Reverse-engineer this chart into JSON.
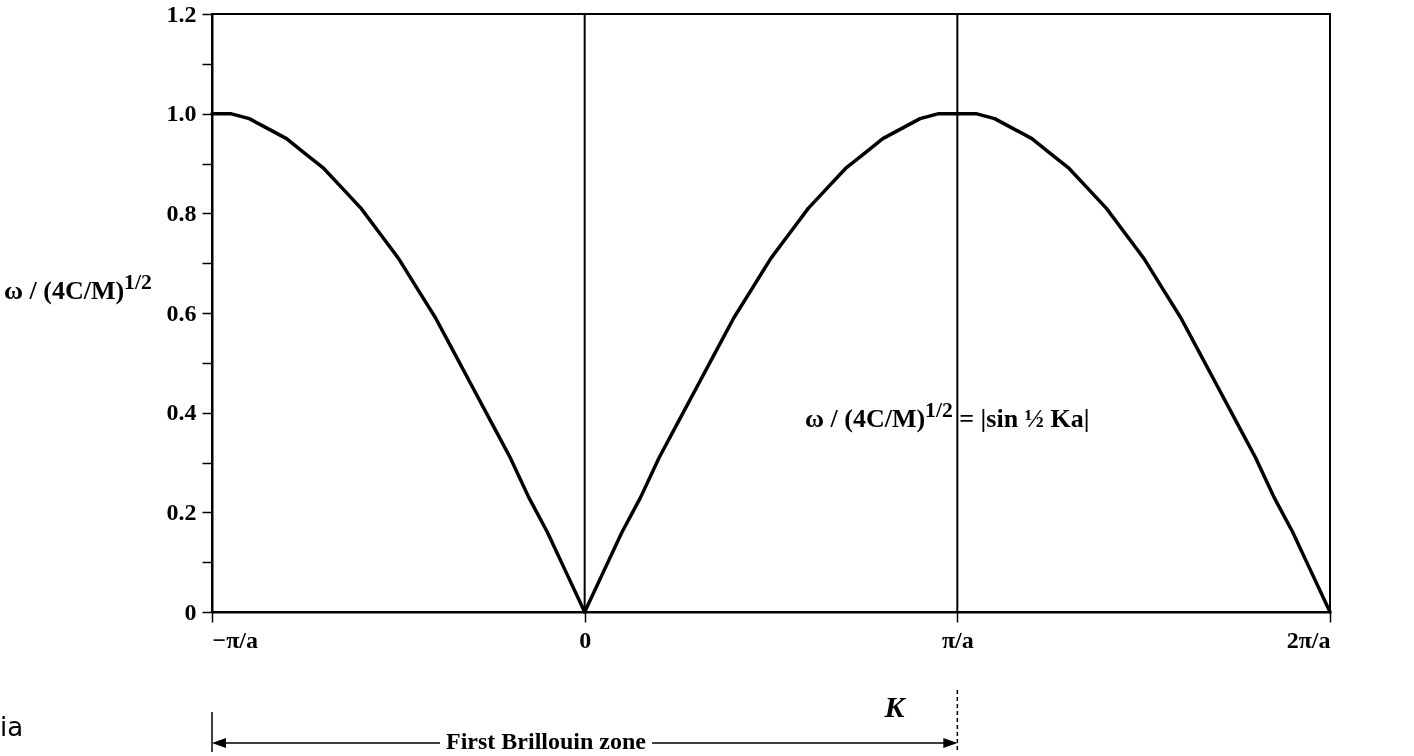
{
  "chart_data": {
    "type": "line",
    "xlabel": "K",
    "ylabel": "ω / (4C/M)$^{1/2}$",
    "x": [
      -1,
      -0.95,
      -0.9,
      -0.85,
      -0.8,
      -0.75,
      -0.7,
      -0.65,
      -0.6,
      -0.55,
      -0.5,
      -0.45,
      -0.4,
      -0.35,
      -0.3,
      -0.25,
      -0.2,
      -0.15,
      -0.1,
      -0.05,
      0,
      0.05,
      0.1,
      0.15,
      0.2,
      0.25,
      0.3,
      0.35,
      0.4,
      0.45,
      0.5,
      0.55,
      0.6,
      0.65,
      0.7,
      0.75,
      0.8,
      0.85,
      0.9,
      0.95,
      1,
      1.05,
      1.1,
      1.15,
      1.2,
      1.25,
      1.3,
      1.35,
      1.4,
      1.45,
      1.5,
      1.55,
      1.6,
      1.65,
      1.7,
      1.75,
      1.8,
      1.85,
      1.9,
      1.95,
      2
    ],
    "series": [
      {
        "color": "#000000",
        "values": [
          1.0,
          1.0,
          0.99,
          0.97,
          0.95,
          0.92,
          0.89,
          0.85,
          0.81,
          0.76,
          0.71,
          0.65,
          0.59,
          0.52,
          0.45,
          0.38,
          0.31,
          0.23,
          0.16,
          0.08,
          0,
          0.08,
          0.16,
          0.23,
          0.31,
          0.38,
          0.45,
          0.52,
          0.59,
          0.65,
          0.71,
          0.76,
          0.81,
          0.85,
          0.89,
          0.92,
          0.95,
          0.97,
          0.99,
          1.0,
          1.0,
          1.0,
          0.99,
          0.97,
          0.95,
          0.92,
          0.89,
          0.85,
          0.81,
          0.76,
          0.71,
          0.65,
          0.59,
          0.52,
          0.45,
          0.38,
          0.31,
          0.23,
          0.16,
          0.08,
          0
        ]
      }
    ],
    "xlim": [
      -1,
      2
    ],
    "xticks": [
      {
        "value": -1,
        "label": "−π/a"
      },
      0,
      {
        "value": 1,
        "label": "π/a"
      },
      {
        "value": 2,
        "label": "2π/a"
      }
    ],
    "ylim": [
      0,
      1.2
    ],
    "yticks": [
      0,
      {
        "value": 0.1,
        "label": null
      },
      0.2,
      {
        "value": 0.3,
        "label": null
      },
      0.4,
      {
        "value": 0.5,
        "label": null
      },
      0.6,
      {
        "value": 0.7,
        "label": null
      },
      0.8,
      {
        "value": 0.9,
        "label": null
      },
      {
        "value": 1,
        "label": "1.0"
      },
      {
        "value": 1.1,
        "label": null
      },
      1.2
    ],
    "ref_lines": [
      {
        "axis": "x",
        "value": 0,
        "color": "#000000"
      },
      {
        "axis": "x",
        "value": 1,
        "color": "#000000"
      }
    ],
    "annotations": [
      "ω / (4C/M)$^{1/2}$ = |sin ½ Ka|",
      "First Brillouin zone",
      "ia"
    ],
    "grid": false,
    "marker": "none",
    "line_style": "solid"
  }
}
